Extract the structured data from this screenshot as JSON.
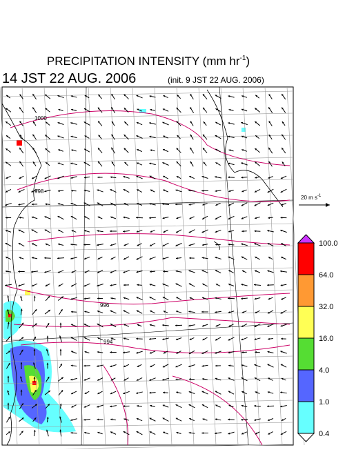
{
  "header": {
    "title": {
      "text": "PRECIPITATION INTENSITY (mm hr",
      "superscript": "-1",
      "close": ")"
    },
    "valid_time": "14 JST 22 AUG. 2006",
    "init_time": "(init. 9 JST 22 AUG. 2006)"
  },
  "reference_vector": {
    "label": "20 m s",
    "superscript": "-1"
  },
  "isobar_labels": [
    "1000",
    "998",
    "996",
    "994"
  ],
  "colorbar": {
    "labels": [
      "100.0",
      "64.0",
      "32.0",
      "16.0",
      "4.0",
      "1.0",
      "0.4"
    ],
    "colors": [
      "#cc33ff",
      "#ff0000",
      "#ff9933",
      "#ffff55",
      "#55dd33",
      "#5566ff",
      "#66ffff",
      "#ffffff"
    ]
  }
}
